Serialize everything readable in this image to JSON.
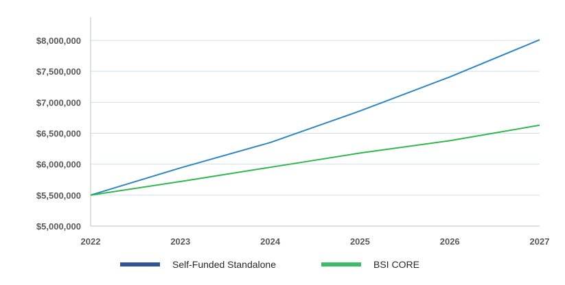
{
  "chart_data": {
    "type": "line",
    "categories": [
      "2022",
      "2023",
      "2024",
      "2025",
      "2026",
      "2027"
    ],
    "series": [
      {
        "name": "Self-Funded Standalone",
        "values": [
          5500000,
          5940000,
          6350000,
          6860000,
          7410000,
          8010000
        ],
        "line_color": "#2e86c1",
        "legend_color": "#2f5597"
      },
      {
        "name": "BSI CORE",
        "values": [
          5500000,
          5720000,
          5950000,
          6180000,
          6380000,
          6630000
        ],
        "line_color": "#2db84c",
        "legend_color": "#3dbb6a"
      }
    ],
    "yticks": [
      "$5,000,000",
      "$5,500,000",
      "$6,000,000",
      "$6,500,000",
      "$7,000,000",
      "$7,500,000",
      "$8,000,000"
    ],
    "ylim": [
      5000000,
      8000000
    ],
    "grid": true,
    "legend_position": "bottom",
    "title": "",
    "xlabel": "",
    "ylabel": ""
  }
}
